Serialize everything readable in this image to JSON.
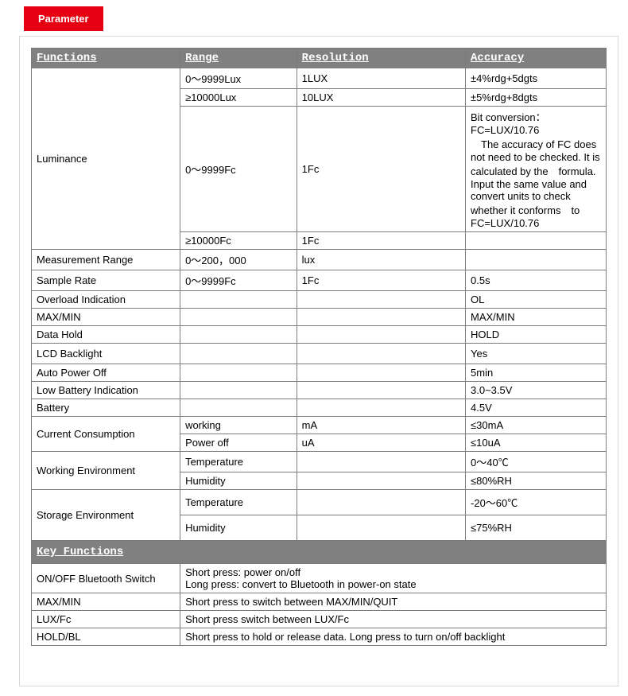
{
  "tab": {
    "label": "Parameter"
  },
  "headers": {
    "functions": "Functions",
    "range": "Range",
    "resolution": "Resolution",
    "accuracy": "Accuracy"
  },
  "rows": {
    "luminance": {
      "label": "Luminance",
      "r1": {
        "range": "0～9999Lux",
        "res": "1LUX",
        "acc": "±4%rdg+5dgts"
      },
      "r2": {
        "range": "≥10000Lux",
        "res": "10LUX",
        "acc": "±5%rdg+8dgts"
      },
      "r3": {
        "range": "0～9999Fc",
        "res": "1Fc",
        "acc": "Bit conversion：FC=LUX/10.76\n　The accuracy of FC does not need to be checked. It is calculated by the　formula. Input the same value and convert units to check whether it conforms　to FC=LUX/10.76"
      },
      "r4": {
        "range": "≥10000Fc",
        "res": "1Fc",
        "acc": ""
      }
    },
    "meas_range": {
      "label": "Measurement Range",
      "range": "0～200，000",
      "res": "lux",
      "acc": ""
    },
    "sample_rate": {
      "label": "Sample Rate",
      "range": "0～9999Fc",
      "res": "1Fc",
      "acc": "0.5s"
    },
    "overload": {
      "label": "Overload Indication",
      "range": "",
      "res": "",
      "acc": "OL"
    },
    "maxmin": {
      "label": "MAX/MIN",
      "range": "",
      "res": "",
      "acc": "MAX/MIN"
    },
    "datahold": {
      "label": "Data Hold",
      "range": "",
      "res": "",
      "acc": "HOLD"
    },
    "lcd": {
      "label": "LCD Backlight",
      "range": "",
      "res": "",
      "acc": "Yes"
    },
    "autopoff": {
      "label": "Auto Power Off",
      "range": "",
      "res": "",
      "acc": "5min"
    },
    "lowbatt": {
      "label": "Low Battery Indication",
      "range": "",
      "res": "",
      "acc": "3.0~3.5V"
    },
    "battery": {
      "label": "Battery",
      "range": "",
      "res": "",
      "acc": "4.5V"
    },
    "current": {
      "label": "Current Consumption",
      "r1": {
        "range": "working",
        "res": "mA",
        "acc": "≤30mA"
      },
      "r2": {
        "range": "Power off",
        "res": "uA",
        "acc": "≤10uA"
      }
    },
    "workenv": {
      "label": "Working Environment",
      "r1": {
        "range": "Temperature",
        "res": "",
        "acc": "0～40℃"
      },
      "r2": {
        "range": "Humidity",
        "res": "",
        "acc": "≤80%RH"
      }
    },
    "storenv": {
      "label": "Storage Environment",
      "r1": {
        "range": "Temperature",
        "res": "",
        "acc": "-20～60℃"
      },
      "r2": {
        "range": "Humidity",
        "res": "",
        "acc": "≤75%RH"
      }
    }
  },
  "key_functions": {
    "header": "Key Functions",
    "rows": {
      "onoff": {
        "label": "ON/OFF Bluetooth Switch",
        "desc_line1": "Short press: power on/off",
        "desc_line2": "Long press: convert to Bluetooth in power-on state"
      },
      "maxmin": {
        "label": "MAX/MIN",
        "desc": "Short press to switch between MAX/MIN/QUIT"
      },
      "luxfc": {
        "label": "LUX/Fc",
        "desc": "Short press switch between LUX/Fc"
      },
      "holdbl": {
        "label": "HOLD/BL",
        "desc": "Short press to hold or release data. Long press to turn on/off backlight"
      }
    }
  }
}
